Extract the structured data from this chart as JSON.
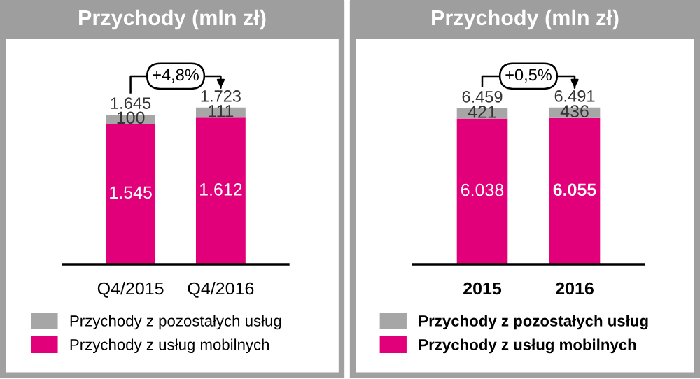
{
  "chart_data": [
    {
      "type": "bar",
      "title": "Przychody (mln zł)",
      "categories": [
        "Q4/2015",
        "Q4/2016"
      ],
      "stacked": true,
      "legend": "bottom",
      "series": [
        {
          "name": "Przychody z usług mobilnych",
          "color": "#e2007a",
          "values": [
            1545,
            1612
          ],
          "value_labels": [
            "1.545",
            "1.612"
          ]
        },
        {
          "name": "Przychody z pozostałych usług",
          "color": "#a6a6a6",
          "values": [
            100,
            111
          ],
          "value_labels": [
            "100",
            "111"
          ]
        }
      ],
      "totals": [
        "1.645",
        "1.723"
      ],
      "annotations": [
        "+4,8%"
      ]
    },
    {
      "type": "bar",
      "title": "Przychody (mln zł)",
      "categories": [
        "2015",
        "2016"
      ],
      "stacked": true,
      "legend": "bottom",
      "series": [
        {
          "name": "Przychody z usług mobilnych",
          "color": "#e2007a",
          "values": [
            6038,
            6055
          ],
          "value_labels": [
            "6.038",
            "6.055"
          ]
        },
        {
          "name": "Przychody z pozostałych usług",
          "color": "#a6a6a6",
          "values": [
            421,
            436
          ],
          "value_labels": [
            "421",
            "436"
          ]
        }
      ],
      "totals": [
        "6.459",
        "6.491"
      ],
      "annotations": [
        "+0,5%"
      ]
    }
  ]
}
